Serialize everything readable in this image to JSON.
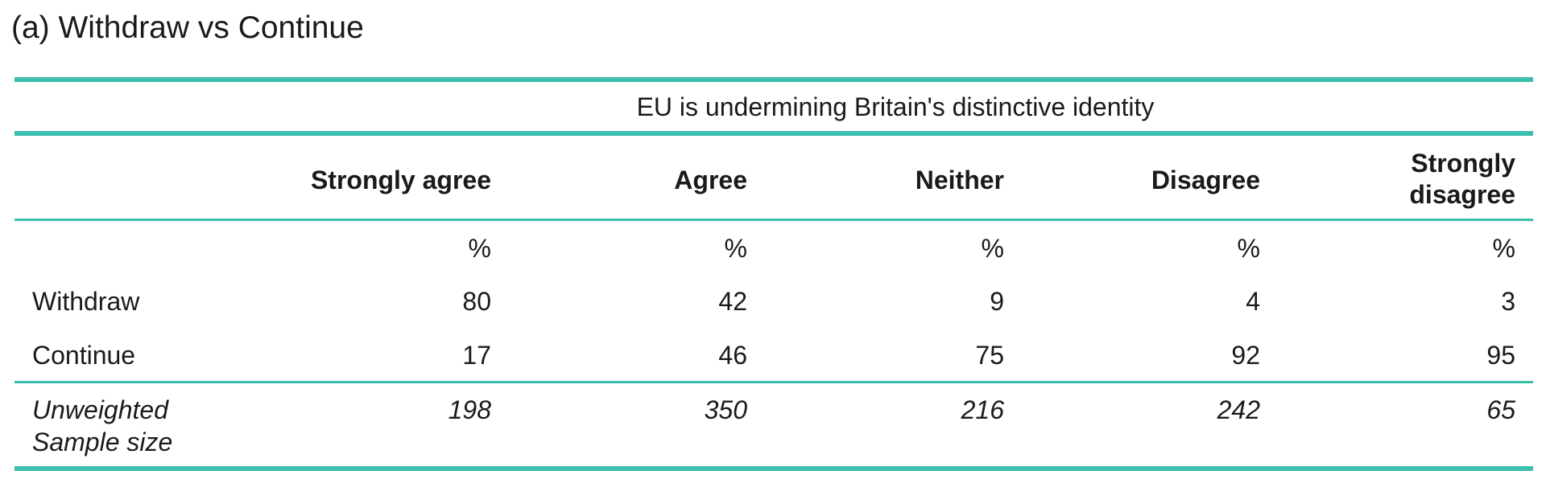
{
  "caption": "(a) Withdraw vs Continue",
  "table": {
    "spanning_header": "EU is undermining Britain's distinctive identity",
    "columns": [
      {
        "label_lines": [
          "Strongly agree"
        ]
      },
      {
        "label_lines": [
          "Agree"
        ]
      },
      {
        "label_lines": [
          "Neither"
        ]
      },
      {
        "label_lines": [
          "Disagree"
        ]
      },
      {
        "label_lines": [
          "Strongly",
          "disagree"
        ]
      }
    ],
    "unit_row": [
      "%",
      "%",
      "%",
      "%",
      "%"
    ],
    "rows": [
      {
        "label": "Withdraw",
        "values": [
          "80",
          "42",
          "9",
          "4",
          "3"
        ]
      },
      {
        "label": "Continue",
        "values": [
          "17",
          "46",
          "75",
          "92",
          "95"
        ]
      }
    ],
    "sample_row": {
      "label_lines": [
        "Unweighted",
        "Sample size"
      ],
      "values": [
        "198",
        "350",
        "216",
        "242",
        "65"
      ]
    }
  }
}
